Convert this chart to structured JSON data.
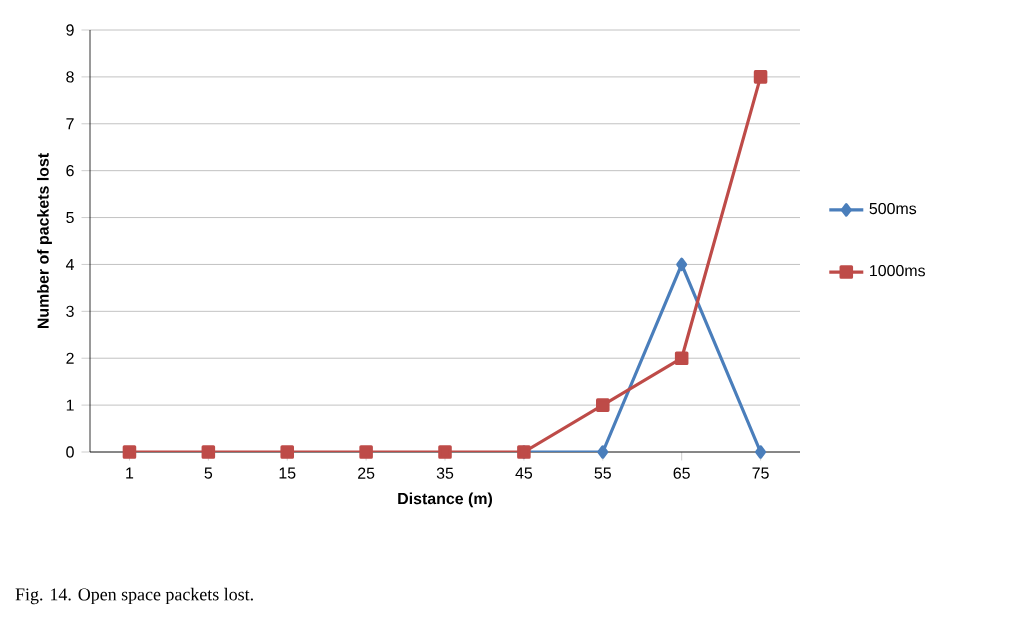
{
  "chart_data": {
    "type": "line",
    "xlabel": "Distance (m)",
    "ylabel": "Number of packets lost",
    "categories": [
      "1",
      "5",
      "15",
      "25",
      "35",
      "45",
      "55",
      "65",
      "75"
    ],
    "series": [
      {
        "name": "500ms",
        "color": "#4a7ebb",
        "marker": "diamond",
        "values": [
          null,
          null,
          null,
          null,
          null,
          0,
          0,
          4,
          0
        ]
      },
      {
        "name": "1000ms",
        "color": "#be4b48",
        "marker": "square",
        "values": [
          0,
          0,
          0,
          0,
          0,
          0,
          1,
          2,
          8
        ]
      }
    ],
    "ylim": [
      0,
      9
    ],
    "yticks": [
      0,
      1,
      2,
      3,
      4,
      5,
      6,
      7,
      8,
      9
    ],
    "grid": "y",
    "legend": "right",
    "annotations": [
      "Fig. 14. Open space packets lost."
    ]
  }
}
